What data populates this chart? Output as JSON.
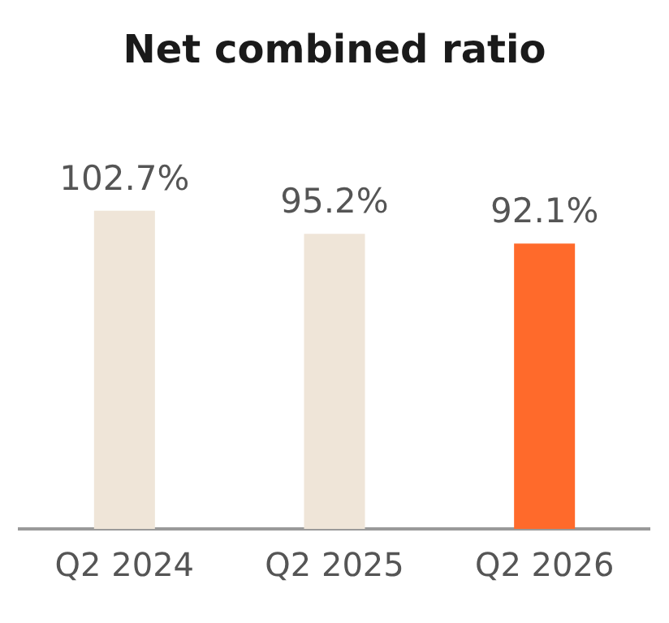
{
  "chart_data": {
    "type": "bar",
    "title": "Net combined ratio",
    "categories": [
      "Q2 2024",
      "Q2 2025",
      "Q2 2026"
    ],
    "values": [
      102.7,
      95.2,
      92.1
    ],
    "colors": [
      "#efe5d8",
      "#efe5d8",
      "#ff6a2b"
    ],
    "value_labels": [
      "102.7%",
      "95.2%",
      "92.1%"
    ],
    "grid": false,
    "legend": false
  }
}
